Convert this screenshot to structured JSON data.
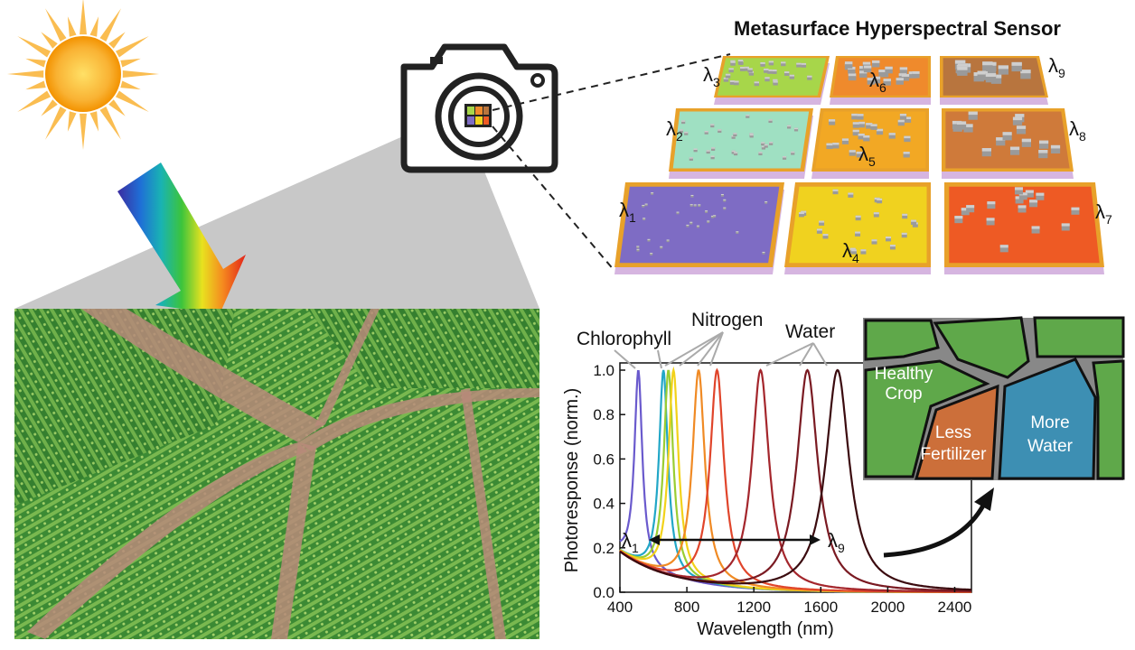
{
  "title": "Metasurface Hyperspectral Sensor",
  "pixels": [
    {
      "label": "λ",
      "sub": "1",
      "color": "#7e6cc4"
    },
    {
      "label": "λ",
      "sub": "2",
      "color": "#9fe0c2"
    },
    {
      "label": "λ",
      "sub": "3",
      "color": "#a7d64a"
    },
    {
      "label": "λ",
      "sub": "4",
      "color": "#f0d21f"
    },
    {
      "label": "λ",
      "sub": "5",
      "color": "#f2a824"
    },
    {
      "label": "λ",
      "sub": "6",
      "color": "#ef8a2c"
    },
    {
      "label": "λ",
      "sub": "7",
      "color": "#ee5a24"
    },
    {
      "label": "λ",
      "sub": "8",
      "color": "#cf7a3a"
    },
    {
      "label": "λ",
      "sub": "9",
      "color": "#b8753e"
    }
  ],
  "annotations": {
    "chlorophyll": "Chlorophyll",
    "nitrogen": "Nitrogen",
    "water": "Water",
    "range_start": {
      "label": "λ",
      "sub": "1"
    },
    "range_end": {
      "label": "λ",
      "sub": "9"
    }
  },
  "map_regions": {
    "healthy": [
      "Healthy",
      "Crop"
    ],
    "less_fertilizer": [
      "Less",
      "Fertilizer"
    ],
    "more_water": [
      "More",
      "Water"
    ]
  },
  "chart_data": {
    "type": "line",
    "xlabel": "Wavelength (nm)",
    "ylabel": "Photoresponse (norm.)",
    "xlim": [
      400,
      2500
    ],
    "ylim": [
      0,
      1.0
    ],
    "xticks": [
      400,
      800,
      1200,
      1600,
      2000,
      2400
    ],
    "yticks": [
      0.0,
      0.2,
      0.4,
      0.6,
      0.8,
      1.0
    ],
    "series": [
      {
        "peak": 510,
        "width": 28,
        "color": "#6a5acd"
      },
      {
        "peak": 660,
        "width": 32,
        "color": "#22a7c7"
      },
      {
        "peak": 690,
        "width": 34,
        "color": "#9acd32"
      },
      {
        "peak": 720,
        "width": 36,
        "color": "#f2d21a"
      },
      {
        "peak": 870,
        "width": 45,
        "color": "#f08a24"
      },
      {
        "peak": 980,
        "width": 50,
        "color": "#e0452b"
      },
      {
        "peak": 1240,
        "width": 62,
        "color": "#a4262c"
      },
      {
        "peak": 1520,
        "width": 75,
        "color": "#7a1a22"
      },
      {
        "peak": 1700,
        "width": 85,
        "color": "#3b0b0f"
      }
    ]
  },
  "colors": {
    "sun": "#f9b233",
    "field_dark": "#2f7a2a",
    "field_light": "#66a845",
    "path": "#b78a7a",
    "healthy": "#5fa84a",
    "less_fertilizer": "#cc6f3a",
    "more_water": "#3d8fb3",
    "cone": "#c8c8c8"
  }
}
